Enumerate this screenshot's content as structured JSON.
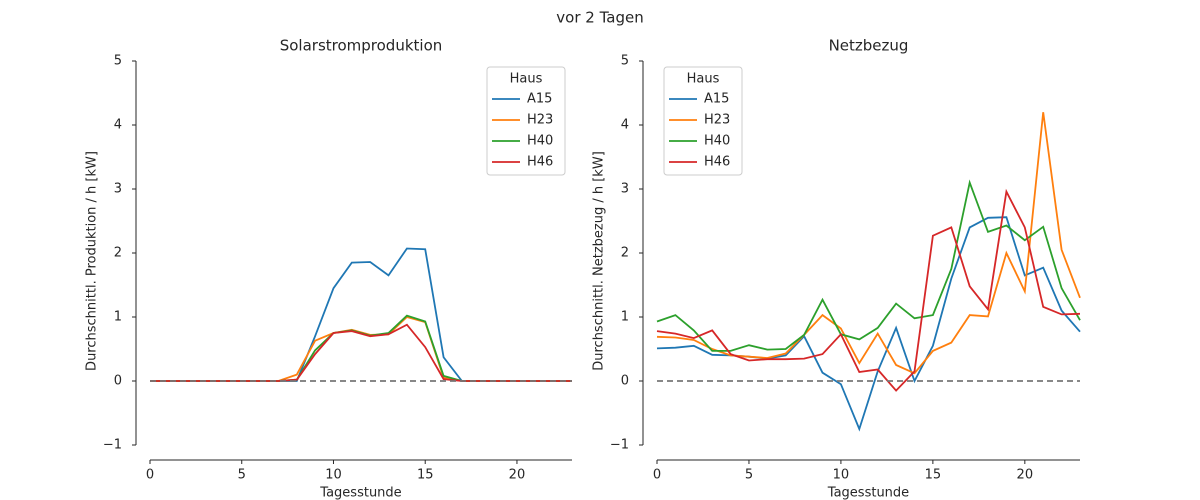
{
  "title": "vor 2 Tagen",
  "chart_data": [
    {
      "type": "line",
      "title": "Solarstromproduktion",
      "xlabel": "Tagesstunde",
      "ylabel": "Durchschnittl. Produktion / h [kW]",
      "x": [
        0,
        1,
        2,
        3,
        4,
        5,
        6,
        7,
        8,
        9,
        10,
        11,
        12,
        13,
        14,
        15,
        16,
        17,
        18,
        19,
        20,
        21,
        22,
        23
      ],
      "series": [
        {
          "name": "A15",
          "color": "#1f77b4",
          "values": [
            0,
            0,
            0,
            0,
            0,
            0,
            0,
            0,
            0,
            0.7,
            1.45,
            1.85,
            1.86,
            1.65,
            2.07,
            2.06,
            0.37,
            0,
            0,
            0,
            0,
            0,
            0,
            0
          ]
        },
        {
          "name": "H23",
          "color": "#ff7f0e",
          "values": [
            0,
            0,
            0,
            0,
            0,
            0,
            0,
            0,
            0.1,
            0.63,
            0.75,
            0.8,
            0.72,
            0.73,
            1.0,
            0.92,
            0.05,
            0,
            0,
            0,
            0,
            0,
            0,
            0
          ]
        },
        {
          "name": "H40",
          "color": "#2ca02c",
          "values": [
            0,
            0,
            0,
            0,
            0,
            0,
            0,
            0,
            0.02,
            0.48,
            0.75,
            0.79,
            0.71,
            0.75,
            1.02,
            0.93,
            0.08,
            0,
            0,
            0,
            0,
            0,
            0,
            0
          ]
        },
        {
          "name": "H46",
          "color": "#d62728",
          "values": [
            0,
            0,
            0,
            0,
            0,
            0,
            0,
            0,
            0.02,
            0.42,
            0.75,
            0.78,
            0.7,
            0.73,
            0.88,
            0.53,
            0.03,
            0,
            0,
            0,
            0,
            0,
            0,
            0
          ]
        }
      ],
      "xlim": [
        0,
        23
      ],
      "xticks": [
        0,
        5,
        10,
        15,
        20
      ],
      "ylim": [
        -1.25,
        5
      ],
      "yticks": [
        {
          "value": -1,
          "label": "−1"
        },
        0,
        1,
        2,
        3,
        4,
        5
      ],
      "hline": 0,
      "legend_title": "Haus",
      "legend": "upper right"
    },
    {
      "type": "line",
      "title": "Netzbezug",
      "xlabel": "Tagesstunde",
      "ylabel": "Durchschnittl. Netzbezug / h [kW]",
      "x": [
        0,
        1,
        2,
        3,
        4,
        5,
        6,
        7,
        8,
        9,
        10,
        11,
        12,
        13,
        14,
        15,
        16,
        17,
        18,
        19,
        20,
        21,
        22,
        23
      ],
      "series": [
        {
          "name": "A15",
          "color": "#1f77b4",
          "values": [
            0.51,
            0.52,
            0.55,
            0.41,
            0.4,
            0.38,
            0.35,
            0.4,
            0.7,
            0.13,
            -0.05,
            -0.75,
            0.15,
            0.83,
            0.0,
            0.55,
            1.6,
            2.4,
            2.55,
            2.56,
            1.65,
            1.77,
            1.1,
            0.77
          ]
        },
        {
          "name": "H23",
          "color": "#ff7f0e",
          "values": [
            0.69,
            0.68,
            0.64,
            0.5,
            0.4,
            0.38,
            0.36,
            0.43,
            0.72,
            1.03,
            0.82,
            0.28,
            0.74,
            0.25,
            0.12,
            0.47,
            0.6,
            1.03,
            1.01,
            2.0,
            1.4,
            4.2,
            2.05,
            1.3
          ]
        },
        {
          "name": "H40",
          "color": "#2ca02c",
          "values": [
            0.93,
            1.03,
            0.79,
            0.47,
            0.47,
            0.56,
            0.49,
            0.5,
            0.72,
            1.27,
            0.73,
            0.65,
            0.83,
            1.21,
            0.98,
            1.03,
            1.75,
            3.1,
            2.33,
            2.43,
            2.2,
            2.41,
            1.45,
            0.95
          ]
        },
        {
          "name": "H46",
          "color": "#d62728",
          "values": [
            0.78,
            0.74,
            0.67,
            0.79,
            0.42,
            0.32,
            0.34,
            0.34,
            0.35,
            0.42,
            0.73,
            0.14,
            0.18,
            -0.15,
            0.15,
            2.27,
            2.4,
            1.48,
            1.12,
            2.96,
            2.4,
            1.16,
            1.04,
            1.05
          ]
        }
      ],
      "xlim": [
        0,
        23
      ],
      "xticks": [
        0,
        5,
        10,
        15,
        20
      ],
      "ylim": [
        -1.25,
        5
      ],
      "yticks": [
        {
          "value": -1,
          "label": "−1"
        },
        0,
        1,
        2,
        3,
        4,
        5
      ],
      "hline": 0,
      "legend_title": "Haus",
      "legend": "upper left"
    }
  ]
}
